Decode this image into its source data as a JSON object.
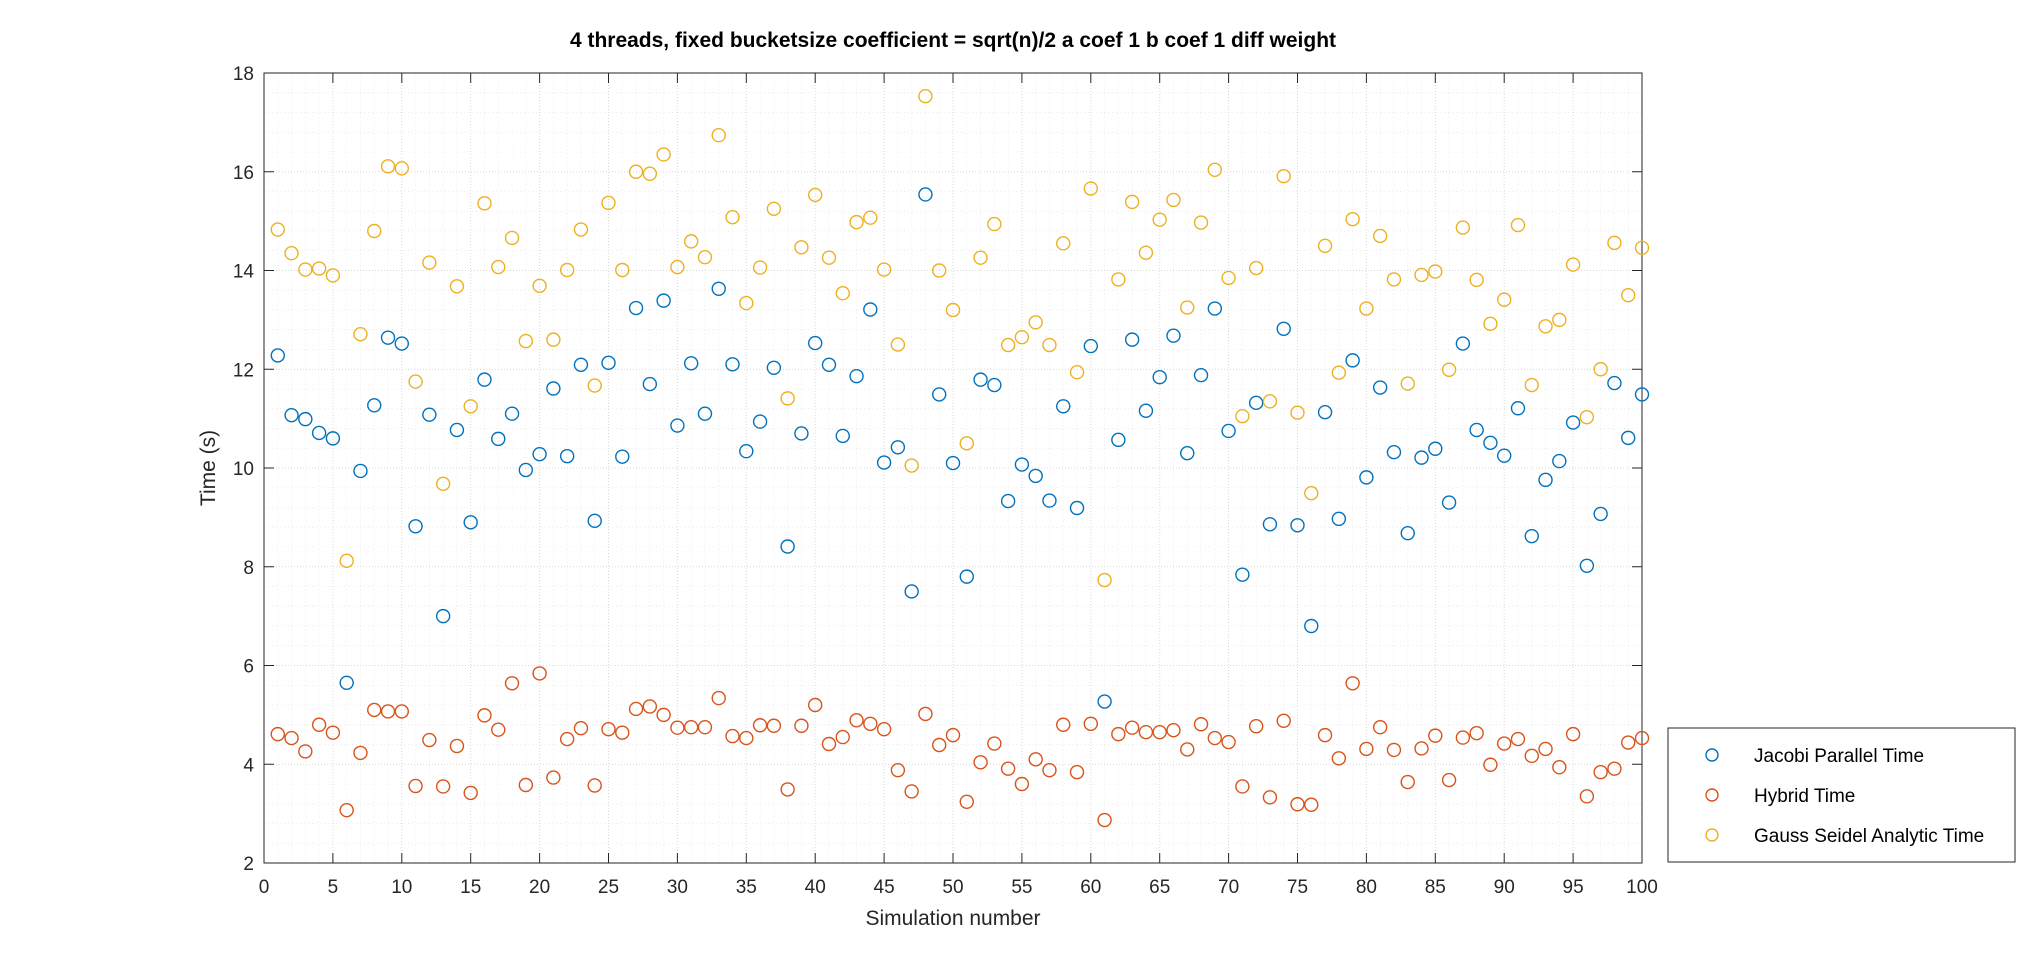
{
  "chart_data": {
    "type": "scatter",
    "title": "4 threads, fixed bucketsize coefficient = sqrt(n)/2 a coef 1 b coef 1 diff weight",
    "xlabel": "Simulation number",
    "ylabel": "Time (s)",
    "xlim": [
      0,
      100
    ],
    "ylim": [
      2,
      18
    ],
    "xticks": [
      0,
      5,
      10,
      15,
      20,
      25,
      30,
      35,
      40,
      45,
      50,
      55,
      60,
      65,
      70,
      75,
      80,
      85,
      90,
      95,
      100
    ],
    "yticks": [
      2,
      4,
      6,
      8,
      10,
      12,
      14,
      16,
      18
    ],
    "grid": true,
    "minor_grid": true,
    "legend_position": "bottom-right outside",
    "x": [
      1,
      2,
      3,
      4,
      5,
      6,
      7,
      8,
      9,
      10,
      11,
      12,
      13,
      14,
      15,
      16,
      17,
      18,
      19,
      20,
      21,
      22,
      23,
      24,
      25,
      26,
      27,
      28,
      29,
      30,
      31,
      32,
      33,
      34,
      35,
      36,
      37,
      38,
      39,
      40,
      41,
      42,
      43,
      44,
      45,
      46,
      47,
      48,
      49,
      50,
      51,
      52,
      53,
      54,
      55,
      56,
      57,
      58,
      59,
      60,
      61,
      62,
      63,
      64,
      65,
      66,
      67,
      68,
      69,
      70,
      71,
      72,
      73,
      74,
      75,
      76,
      77,
      78,
      79,
      80,
      81,
      82,
      83,
      84,
      85,
      86,
      87,
      88,
      89,
      90,
      91,
      92,
      93,
      94,
      95,
      96,
      97,
      98,
      99,
      100
    ],
    "series": [
      {
        "name": "Jacobi Parallel Time",
        "color": "#0072BD",
        "values": [
          12.28,
          11.07,
          10.99,
          10.71,
          10.6,
          5.65,
          9.94,
          11.27,
          12.64,
          12.52,
          8.82,
          11.08,
          7.0,
          10.77,
          8.9,
          11.79,
          10.59,
          11.1,
          9.96,
          10.28,
          11.61,
          10.24,
          12.09,
          8.93,
          12.13,
          10.23,
          13.24,
          11.7,
          13.39,
          10.86,
          12.12,
          11.1,
          13.63,
          12.1,
          10.34,
          10.94,
          12.03,
          8.41,
          10.7,
          12.53,
          12.09,
          10.65,
          11.86,
          13.21,
          10.11,
          10.42,
          7.5,
          15.54,
          11.49,
          10.1,
          7.8,
          11.79,
          11.68,
          9.33,
          10.07,
          9.84,
          9.34,
          11.25,
          9.19,
          12.47,
          5.27,
          10.57,
          12.6,
          11.16,
          11.84,
          12.68,
          10.3,
          11.88,
          13.23,
          10.75,
          7.84,
          11.32,
          8.86,
          12.82,
          8.84,
          6.8,
          11.13,
          8.97,
          12.18,
          9.81,
          11.63,
          10.32,
          8.68,
          10.21,
          10.39,
          9.3,
          12.52,
          10.77,
          10.51,
          10.25,
          11.21,
          8.62,
          9.76,
          10.14,
          10.92,
          8.02,
          9.07,
          11.72,
          10.61,
          11.49
        ]
      },
      {
        "name": "Hybrid Time",
        "color": "#D95319",
        "values": [
          4.61,
          4.53,
          4.26,
          4.8,
          4.64,
          3.07,
          4.23,
          5.1,
          5.07,
          5.07,
          3.56,
          4.49,
          3.55,
          4.37,
          3.42,
          4.99,
          4.7,
          5.64,
          3.58,
          5.84,
          3.73,
          4.51,
          4.73,
          3.57,
          4.71,
          4.64,
          5.12,
          5.17,
          5.0,
          4.74,
          4.75,
          4.75,
          5.34,
          4.57,
          4.53,
          4.79,
          4.78,
          3.49,
          4.78,
          5.2,
          4.41,
          4.55,
          4.89,
          4.82,
          4.71,
          3.88,
          3.45,
          5.02,
          4.39,
          4.59,
          3.24,
          4.04,
          4.42,
          3.91,
          3.6,
          4.1,
          3.88,
          4.8,
          3.84,
          4.82,
          2.87,
          4.61,
          4.74,
          4.65,
          4.65,
          4.69,
          4.3,
          4.81,
          4.53,
          4.45,
          3.55,
          4.77,
          3.33,
          4.88,
          3.19,
          3.18,
          4.59,
          4.12,
          5.64,
          4.31,
          4.75,
          4.29,
          3.64,
          4.32,
          4.58,
          3.68,
          4.54,
          4.63,
          3.99,
          4.42,
          4.51,
          4.17,
          4.31,
          3.94,
          4.61,
          3.35,
          3.84,
          3.91,
          4.44,
          4.53
        ]
      },
      {
        "name": "Gauss Seidel Analytic Time",
        "color": "#EDB120",
        "values": [
          14.83,
          14.35,
          14.02,
          14.04,
          13.9,
          8.12,
          12.71,
          14.8,
          16.11,
          16.07,
          11.75,
          14.16,
          9.68,
          13.68,
          11.25,
          15.36,
          14.07,
          14.66,
          12.57,
          13.69,
          12.6,
          14.01,
          14.83,
          11.67,
          15.37,
          14.01,
          16.0,
          15.96,
          16.35,
          14.07,
          14.59,
          14.27,
          16.74,
          15.08,
          13.34,
          14.06,
          15.25,
          11.41,
          14.47,
          15.53,
          14.26,
          13.54,
          14.98,
          15.07,
          14.02,
          12.5,
          10.05,
          17.53,
          14.0,
          13.2,
          10.5,
          14.26,
          14.94,
          12.49,
          12.65,
          12.95,
          12.49,
          14.55,
          11.94,
          15.66,
          7.73,
          13.82,
          15.39,
          14.36,
          15.03,
          15.43,
          13.25,
          14.97,
          16.04,
          13.85,
          11.05,
          14.05,
          11.35,
          15.91,
          11.12,
          9.49,
          14.5,
          11.93,
          15.04,
          13.23,
          14.7,
          13.82,
          11.71,
          13.91,
          13.98,
          11.99,
          14.87,
          13.81,
          12.92,
          13.41,
          14.92,
          11.68,
          12.87,
          13.0,
          14.12,
          11.03,
          12.0,
          14.56,
          13.5,
          14.46
        ]
      }
    ]
  }
}
